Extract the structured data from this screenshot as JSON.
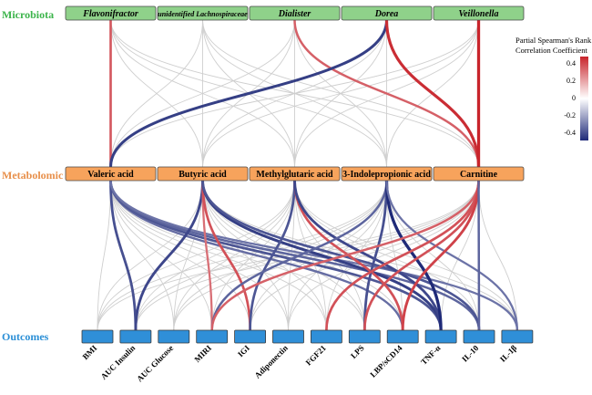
{
  "rows": {
    "microbiota": {
      "label": "Microbiota",
      "color": "#3cb44b"
    },
    "metabolomic": {
      "label": "Metabolomic",
      "color": "#e8904b"
    },
    "outcomes": {
      "label": "Outcomes",
      "color": "#2b8fd6"
    }
  },
  "microbiota": [
    "Flavonifractor",
    "unidentified Lachnospiraceae",
    "Dialister",
    "Dorea",
    "Veillonella"
  ],
  "metabolites": [
    "Valeric acid",
    "Butyric acid",
    "Methylglutaric acid",
    "3-Indolepropionic acid",
    "Carnitine"
  ],
  "outcomes": [
    "BMI",
    "AUC Insulin",
    "AUC Glucose",
    "MIRI",
    "IGI",
    "Adiponectin",
    "FGF21",
    "LPS",
    "LBP/sCD14",
    "TNF-α",
    "IL-10",
    "IL-1β"
  ],
  "colors": {
    "microbe_box": "#8fd18a",
    "metabolite_box": "#f7a35c",
    "outcome_box": "#2f8fd8",
    "neutral_line": "#cfcfcf",
    "positive": "#c8242b",
    "negative": "#1f2a78"
  },
  "legend": {
    "title_line1": "Partial Spearman's Rank",
    "title_line2": "Correlation Coefficient",
    "ticks": [
      "0.4",
      "0.2",
      "0",
      "-0.2",
      "-0.4"
    ],
    "range": [
      -0.45,
      0.45
    ]
  },
  "significant_links": {
    "microbe_metabolite": [
      {
        "from": "Flavonifractor",
        "to": "Valeric acid",
        "r": 0.28
      },
      {
        "from": "Dialister",
        "to": "Carnitine",
        "r": 0.25
      },
      {
        "from": "Dorea",
        "to": "Valeric acid",
        "r": -0.38
      },
      {
        "from": "Dorea",
        "to": "Carnitine",
        "r": 0.42
      },
      {
        "from": "Veillonella",
        "to": "Carnitine",
        "r": 0.45
      }
    ],
    "metabolite_outcome": [
      {
        "from": "Valeric acid",
        "to": "AUC Insulin",
        "r": -0.32
      },
      {
        "from": "Valeric acid",
        "to": "LBP/sCD14",
        "r": -0.22
      },
      {
        "from": "Valeric acid",
        "to": "TNF-α",
        "r": -0.3
      },
      {
        "from": "Valeric acid",
        "to": "IL-10",
        "r": -0.25
      },
      {
        "from": "Valeric acid",
        "to": "IL-1β",
        "r": -0.2
      },
      {
        "from": "Butyric acid",
        "to": "AUC Insulin",
        "r": -0.35
      },
      {
        "from": "Butyric acid",
        "to": "MIRI",
        "r": 0.2
      },
      {
        "from": "Butyric acid",
        "to": "IGI",
        "r": 0.3
      },
      {
        "from": "Butyric acid",
        "to": "TNF-α",
        "r": -0.38
      },
      {
        "from": "Butyric acid",
        "to": "IL-10",
        "r": -0.3
      },
      {
        "from": "Methylglutaric acid",
        "to": "IGI",
        "r": -0.3
      },
      {
        "from": "Methylglutaric acid",
        "to": "LBP/sCD14",
        "r": 0.3
      },
      {
        "from": "Methylglutaric acid",
        "to": "TNF-α",
        "r": -0.35
      },
      {
        "from": "3-Indolepropionic acid",
        "to": "MIRI",
        "r": -0.25
      },
      {
        "from": "3-Indolepropionic acid",
        "to": "LPS",
        "r": -0.32
      },
      {
        "from": "3-Indolepropionic acid",
        "to": "TNF-α",
        "r": -0.45
      },
      {
        "from": "3-Indolepropionic acid",
        "to": "IL-1β",
        "r": -0.2
      },
      {
        "from": "Carnitine",
        "to": "MIRI",
        "r": 0.25
      },
      {
        "from": "Carnitine",
        "to": "FGF21",
        "r": 0.3
      },
      {
        "from": "Carnitine",
        "to": "LPS",
        "r": 0.3
      },
      {
        "from": "Carnitine",
        "to": "LBP/sCD14",
        "r": 0.35
      },
      {
        "from": "Carnitine",
        "to": "IL-10",
        "r": -0.25
      }
    ]
  }
}
